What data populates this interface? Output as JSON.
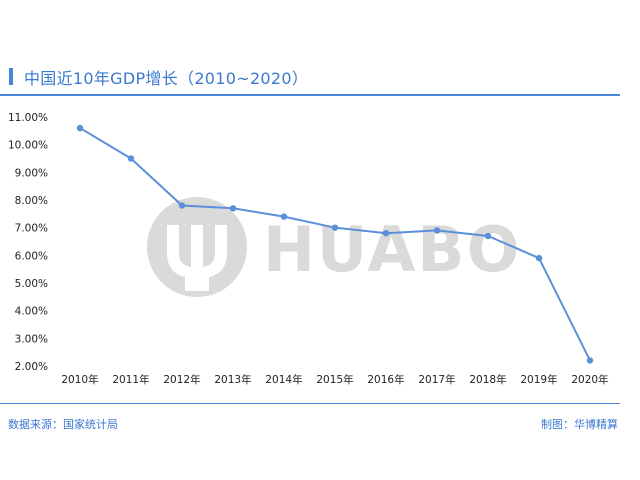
{
  "header": {
    "title": "中国近10年GDP增长（2010~2020）"
  },
  "footer": {
    "source": "数据来源：国家统计局",
    "credit": "制图：华博精算"
  },
  "watermark": {
    "text": "HUABO"
  },
  "colors": {
    "accent": "#4a86d8",
    "line": "#5b8fd9",
    "watermark": "#dadada"
  },
  "chart_data": {
    "type": "line",
    "title": "中国近10年GDP增长（2010~2020）",
    "categories": [
      "2010年",
      "2011年",
      "2012年",
      "2013年",
      "2014年",
      "2015年",
      "2016年",
      "2017年",
      "2018年",
      "2019年",
      "2020年"
    ],
    "values": [
      10.6,
      9.5,
      7.8,
      7.7,
      7.4,
      7.0,
      6.8,
      6.9,
      6.7,
      5.9,
      2.2
    ],
    "yticks": [
      "2.00%",
      "3.00%",
      "4.00%",
      "5.00%",
      "6.00%",
      "7.00%",
      "8.00%",
      "9.00%",
      "10.00%",
      "11.00%"
    ],
    "ylim": [
      2,
      11
    ],
    "grid": false,
    "xlabel": "",
    "ylabel": ""
  }
}
